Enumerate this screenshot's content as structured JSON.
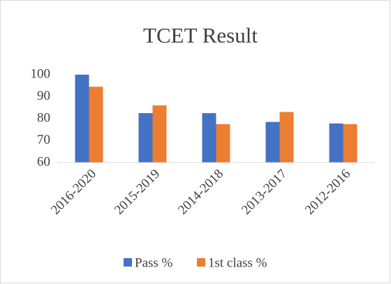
{
  "chart_data": {
    "type": "bar",
    "title": "TCET Result",
    "categories": [
      "2016-2020",
      "2015-2019",
      "2014-2018",
      "2013-2017",
      "2012-2016"
    ],
    "series": [
      {
        "name": "Pass %",
        "color": "#4472c4",
        "values": [
          100,
          82.5,
          82.5,
          78.5,
          77.8
        ]
      },
      {
        "name": "1st class %",
        "color": "#ed7d31",
        "values": [
          94.5,
          86,
          77.5,
          83,
          77.5
        ]
      }
    ],
    "ylim": [
      60,
      100
    ],
    "yticks": [
      60,
      70,
      80,
      90,
      100
    ],
    "grid": false,
    "legend": "bottom"
  }
}
